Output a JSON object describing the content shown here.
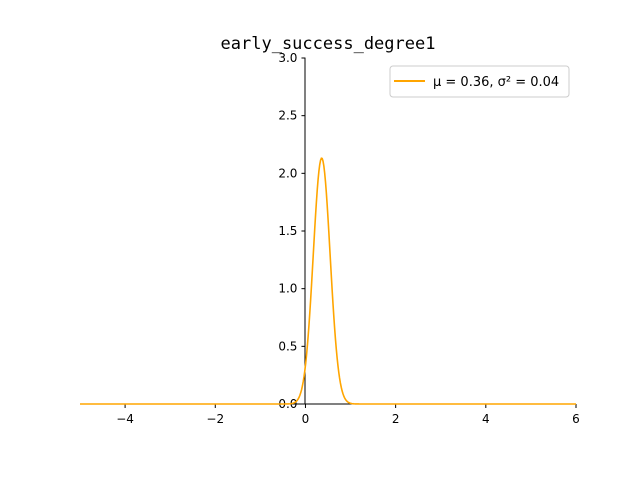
{
  "chart_data": {
    "type": "line",
    "title": "early_success_degree1",
    "xlabel": "",
    "ylabel": "",
    "xlim": [
      -5,
      6
    ],
    "ylim": [
      0,
      3.0
    ],
    "grid": false,
    "legend_position": "top-right",
    "x_ticks": [
      {
        "value": -4,
        "label": "−4"
      },
      {
        "value": -2,
        "label": "−2"
      },
      {
        "value": 0,
        "label": "0"
      },
      {
        "value": 2,
        "label": "2"
      },
      {
        "value": 4,
        "label": "4"
      },
      {
        "value": 6,
        "label": "6"
      }
    ],
    "y_ticks": [
      {
        "value": 0.0,
        "label": "0.0"
      },
      {
        "value": 0.5,
        "label": "0.5"
      },
      {
        "value": 1.0,
        "label": "1.0"
      },
      {
        "value": 1.5,
        "label": "1.5"
      },
      {
        "value": 2.0,
        "label": "2.0"
      },
      {
        "value": 2.5,
        "label": "2.5"
      },
      {
        "value": 3.0,
        "label": "3.0"
      }
    ],
    "series": [
      {
        "name": "μ = 0.36, σ² = 0.04",
        "color": "#ffa500",
        "mu": 0.36,
        "sigma2": 0.035
      }
    ]
  }
}
